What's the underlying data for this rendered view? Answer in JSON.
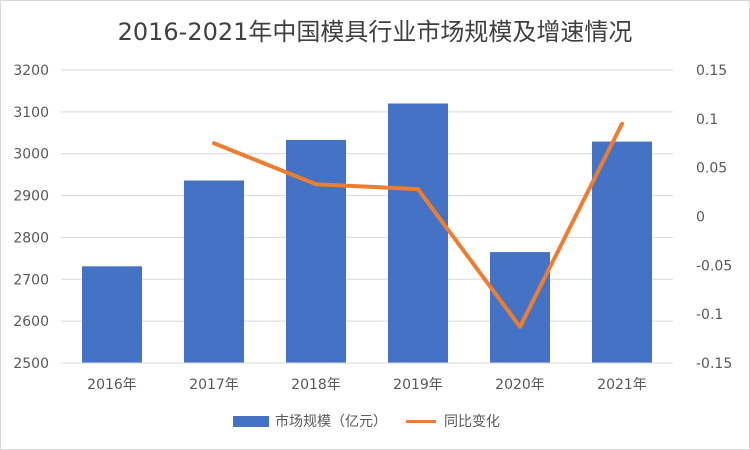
{
  "chart_data": {
    "type": "bar",
    "title": "2016-2021年中国模具行业市场规模及增速情况",
    "categories": [
      "2016年",
      "2017年",
      "2018年",
      "2019年",
      "2020年",
      "2021年"
    ],
    "series": [
      {
        "name": "市场规模（亿元）",
        "type": "bar",
        "axis": "left",
        "color": "#4472C4",
        "values": [
          2731,
          2936,
          3033,
          3120,
          2765,
          3029
        ]
      },
      {
        "name": "同比变化",
        "type": "line",
        "axis": "right",
        "color": "#ED7D31",
        "values": [
          null,
          0.075,
          0.033,
          0.028,
          -0.113,
          0.095
        ]
      }
    ],
    "y_left": {
      "min": 2500,
      "max": 3200,
      "ticks": [
        "2500",
        "2600",
        "2700",
        "2800",
        "2900",
        "3000",
        "3100",
        "3200"
      ],
      "tick_values": [
        2500,
        2600,
        2700,
        2800,
        2900,
        3000,
        3100,
        3200
      ]
    },
    "y_right": {
      "min": -0.15,
      "max": 0.15,
      "ticks": [
        "-0.15",
        "-0.1",
        "-0.05",
        "0",
        "0.05",
        "0.1",
        "0.15"
      ],
      "tick_values": [
        -0.15,
        -0.1,
        -0.05,
        0,
        0.05,
        0.1,
        0.15
      ]
    },
    "grid": true,
    "legend_position": "bottom"
  }
}
